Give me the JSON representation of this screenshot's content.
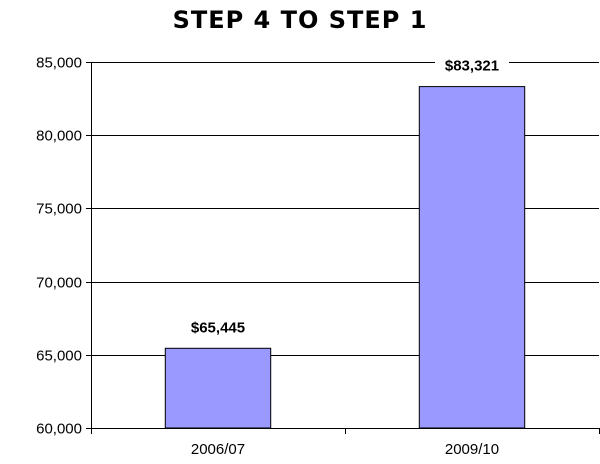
{
  "chart_data": {
    "type": "bar",
    "title": "STEP 4 TO STEP 1",
    "xlabel": "",
    "ylabel": "",
    "categories": [
      "2006/07",
      "2009/10"
    ],
    "values": [
      65445,
      83321
    ],
    "data_labels": [
      "$65,445",
      "$83,321"
    ],
    "ylim": [
      60000,
      85000
    ],
    "y_ticks": [
      60000,
      65000,
      70000,
      75000,
      80000,
      85000
    ],
    "y_tick_labels": [
      "60,000",
      "65,000",
      "70,000",
      "75,000",
      "80,000",
      "85,000"
    ],
    "grid": true,
    "legend": "none",
    "bar_color": "#9999ff",
    "bar_border_color": "#000000"
  }
}
